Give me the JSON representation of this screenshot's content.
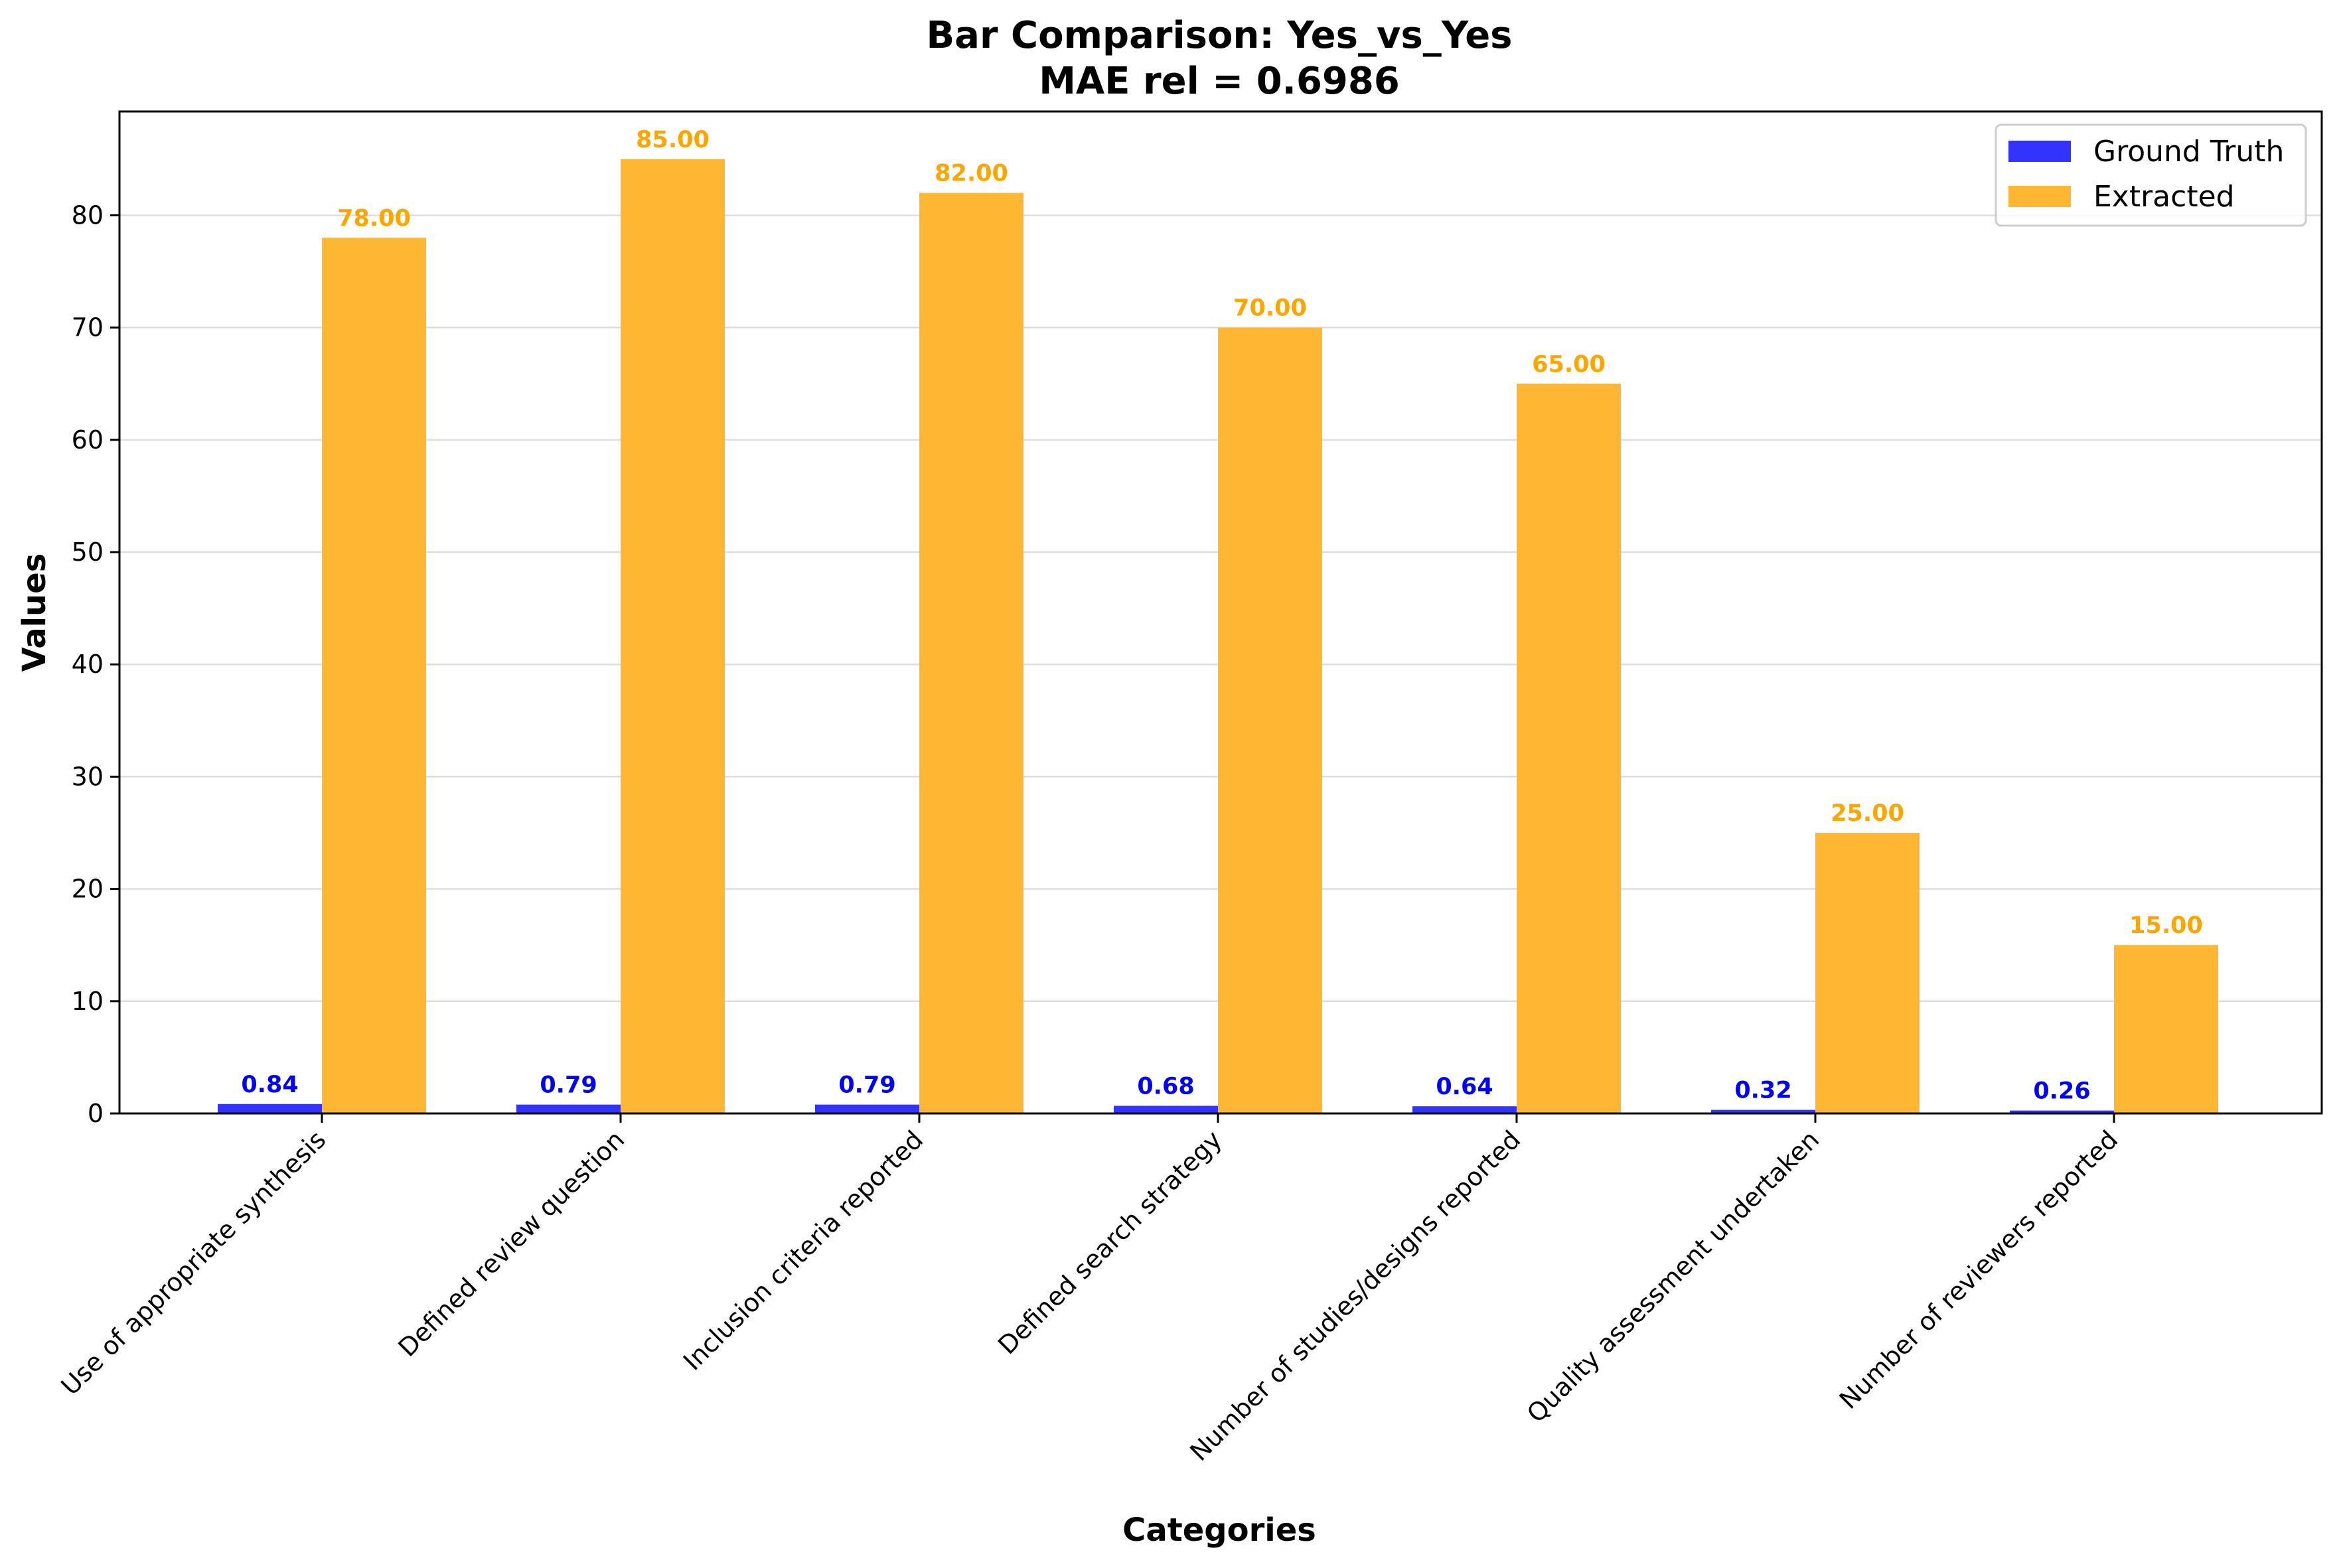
{
  "chart_data": {
    "type": "bar",
    "title": "Bar Comparison: Yes_vs_Yes",
    "subtitle": "MAE rel = 0.6986",
    "xlabel": "Categories",
    "ylabel": "Values",
    "ylim": [
      0,
      89.25
    ],
    "yticks": [
      0,
      10,
      20,
      30,
      40,
      50,
      60,
      70,
      80
    ],
    "grid": "y",
    "legend_position": "top-right",
    "categories": [
      "Use of appropriate synthesis",
      "Defined review question",
      "Inclusion criteria reported",
      "Defined search strategy",
      "Number of studies/designs reported",
      "Quality assessment undertaken",
      "Number of reviewers reported"
    ],
    "series": [
      {
        "name": "Ground Truth",
        "color": "#3333ff",
        "label_color": "#0000ff",
        "values": [
          0.84,
          0.79,
          0.79,
          0.68,
          0.64,
          0.32,
          0.26
        ],
        "labels": [
          "0.84",
          "0.79",
          "0.79",
          "0.68",
          "0.64",
          "0.32",
          "0.26"
        ]
      },
      {
        "name": "Extracted",
        "color": "#ffb733",
        "label_color": "#ffa500",
        "values": [
          78,
          85,
          82,
          70,
          65,
          25,
          15
        ],
        "labels": [
          "78.00",
          "85.00",
          "82.00",
          "70.00",
          "65.00",
          "25.00",
          "15.00"
        ]
      }
    ]
  }
}
